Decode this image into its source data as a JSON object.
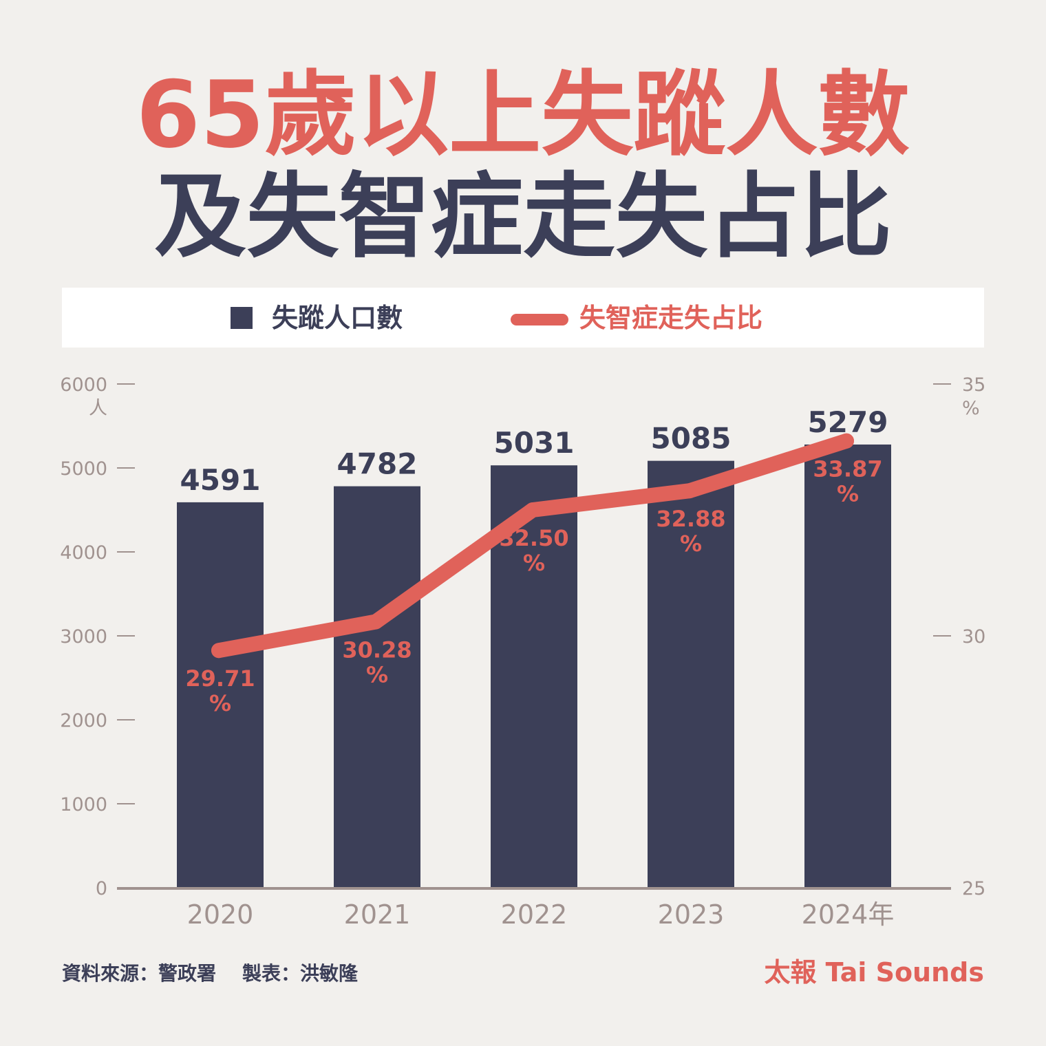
{
  "header": {
    "title_line1": "65歲以上失蹤人數",
    "title_line2": "及失智症走失占比"
  },
  "legend": {
    "bar_label": "失蹤人口數",
    "line_label": "失智症走失占比"
  },
  "colors": {
    "bar": "#3c3f58",
    "line": "#e0625a",
    "axis": "#a0928f",
    "background": "#f2f0ed"
  },
  "chart_data": {
    "type": "bar",
    "categories": [
      "2020",
      "2021",
      "2022",
      "2023",
      "2024年"
    ],
    "series": [
      {
        "name": "失蹤人口數",
        "type": "bar",
        "axis": "left",
        "values": [
          4591,
          4782,
          5031,
          5085,
          5279
        ]
      },
      {
        "name": "失智症走失占比",
        "type": "line",
        "axis": "right",
        "values": [
          29.71,
          30.28,
          32.5,
          32.88,
          33.87
        ]
      }
    ],
    "value_labels": [
      "4591",
      "4782",
      "5031",
      "5085",
      "5279"
    ],
    "line_labels": [
      "29.71",
      "30.28",
      "32.50",
      "32.88",
      "33.87"
    ],
    "line_label_unit": "%",
    "left_axis": {
      "ylim": [
        0,
        6000
      ],
      "ticks": [
        0,
        1000,
        2000,
        3000,
        4000,
        5000,
        6000
      ],
      "tick_labels": [
        "0",
        "1000",
        "2000",
        "3000",
        "4000",
        "5000",
        "6000"
      ],
      "unit": "人"
    },
    "right_axis": {
      "ylim": [
        25,
        35
      ],
      "ticks": [
        25,
        30,
        35
      ],
      "tick_labels": [
        "25",
        "30",
        "35"
      ],
      "unit": "%"
    },
    "grid": false,
    "legend_position": "top"
  },
  "footer": {
    "source": "資料來源：警政署",
    "author": "製表：洪敏隆",
    "brand": "太報 Tai Sounds"
  }
}
